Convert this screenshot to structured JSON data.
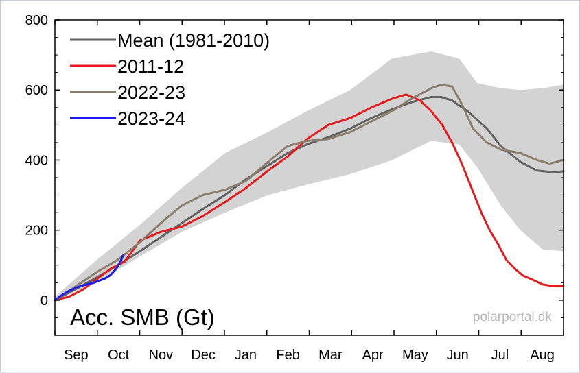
{
  "chart_data": {
    "type": "line",
    "title": "Acc. SMB (Gt)",
    "credit": "polarportal.dk",
    "xlabel": "",
    "ylabel": "",
    "months": [
      "Sep",
      "Oct",
      "Nov",
      "Dec",
      "Jan",
      "Feb",
      "Mar",
      "Apr",
      "May",
      "Jun",
      "Jul",
      "Aug"
    ],
    "x_unit": "days since Sep 1",
    "xlim": [
      0,
      365
    ],
    "ylim": [
      -100,
      800
    ],
    "yticks": [
      0,
      200,
      400,
      600,
      800
    ],
    "grid": false,
    "legend_position": "top-left",
    "band": {
      "x": [
        0,
        30,
        61,
        91,
        122,
        153,
        181,
        212,
        242,
        270,
        290,
        303,
        320,
        334,
        350,
        365
      ],
      "lower": [
        0,
        50,
        125,
        195,
        250,
        300,
        330,
        360,
        400,
        455,
        445,
        380,
        270,
        200,
        145,
        140
      ],
      "upper": [
        10,
        115,
        215,
        320,
        420,
        480,
        540,
        600,
        690,
        710,
        690,
        620,
        605,
        600,
        605,
        615
      ]
    },
    "series": [
      {
        "name": "Mean (1981-2010)",
        "color": "#616161",
        "x": [
          0,
          15,
          30,
          45,
          61,
          76,
          91,
          106,
          122,
          137,
          153,
          167,
          181,
          196,
          212,
          227,
          242,
          256,
          270,
          277,
          285,
          296,
          310,
          320,
          334,
          346,
          358,
          365
        ],
        "y": [
          0,
          32,
          65,
          100,
          140,
          180,
          220,
          260,
          300,
          345,
          385,
          420,
          445,
          465,
          490,
          520,
          545,
          565,
          580,
          580,
          570,
          540,
          490,
          440,
          395,
          370,
          365,
          368
        ]
      },
      {
        "name": "2011-12",
        "color": "#e41a1c",
        "x": [
          0,
          10,
          20,
          30,
          40,
          50,
          61,
          76,
          91,
          106,
          122,
          137,
          153,
          167,
          181,
          196,
          212,
          227,
          242,
          252,
          262,
          270,
          278,
          285,
          292,
          300,
          306,
          312,
          318,
          324,
          330,
          336,
          342,
          350,
          358,
          365
        ],
        "y": [
          0,
          10,
          30,
          60,
          90,
          110,
          170,
          195,
          210,
          240,
          280,
          320,
          370,
          410,
          460,
          500,
          520,
          550,
          575,
          587,
          570,
          540,
          500,
          450,
          390,
          310,
          250,
          200,
          160,
          115,
          90,
          70,
          60,
          45,
          40,
          40
        ]
      },
      {
        "name": "2022-23",
        "color": "#8b7d6b",
        "x": [
          0,
          15,
          30,
          45,
          61,
          76,
          91,
          106,
          122,
          137,
          153,
          167,
          181,
          196,
          212,
          227,
          242,
          256,
          270,
          277,
          285,
          292,
          300,
          310,
          320,
          334,
          346,
          355,
          365
        ],
        "y": [
          0,
          40,
          80,
          115,
          165,
          220,
          270,
          300,
          315,
          340,
          395,
          440,
          455,
          460,
          480,
          510,
          540,
          575,
          605,
          615,
          610,
          560,
          490,
          450,
          430,
          420,
          400,
          390,
          400
        ]
      },
      {
        "name": "2023-24",
        "color": "#1c1cf0",
        "x": [
          0,
          4,
          8,
          12,
          16,
          20,
          24,
          28,
          32,
          36,
          40,
          44,
          47,
          49
        ],
        "y": [
          0,
          12,
          22,
          30,
          37,
          42,
          46,
          50,
          56,
          62,
          72,
          90,
          110,
          128
        ]
      }
    ]
  }
}
